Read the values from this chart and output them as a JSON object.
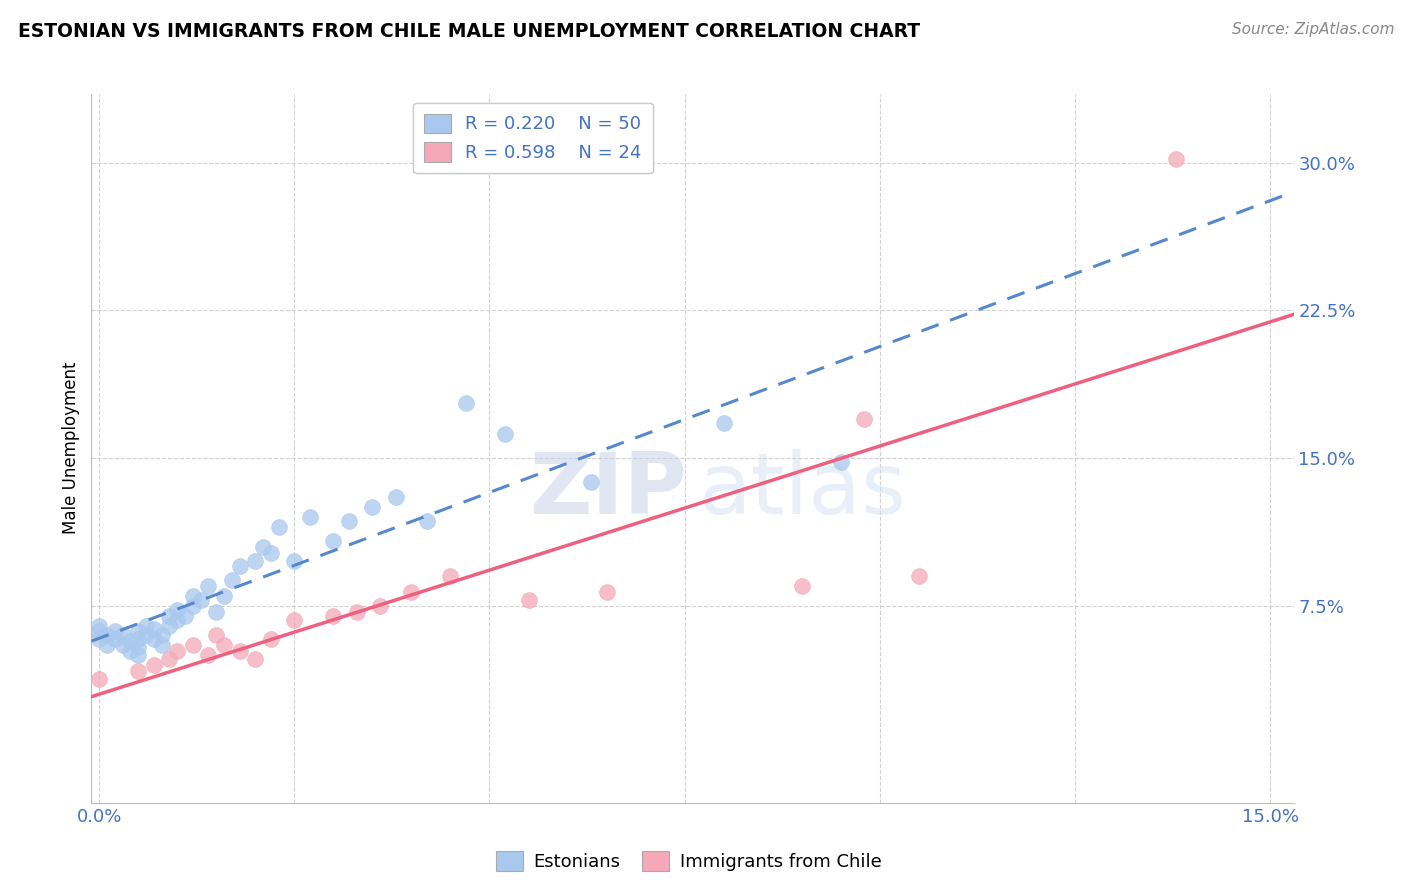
{
  "title": "ESTONIAN VS IMMIGRANTS FROM CHILE MALE UNEMPLOYMENT CORRELATION CHART",
  "source": "Source: ZipAtlas.com",
  "ylabel": "Male Unemployment",
  "xlim": [
    -0.001,
    0.153
  ],
  "ylim": [
    -0.025,
    0.335
  ],
  "yticks": [
    0.075,
    0.15,
    0.225,
    0.3
  ],
  "ytick_labels": [
    "7.5%",
    "15.0%",
    "22.5%",
    "30.0%"
  ],
  "xticks": [
    0.0,
    0.025,
    0.05,
    0.075,
    0.1,
    0.125,
    0.15
  ],
  "xtick_labels": [
    "0.0%",
    "",
    "",
    "",
    "",
    "",
    "15.0%"
  ],
  "legend_r1": "R = 0.220",
  "legend_n1": "N = 50",
  "legend_r2": "R = 0.598",
  "legend_n2": "N = 24",
  "blue_color": "#A8C8EE",
  "pink_color": "#F4A8B8",
  "blue_line_color": "#5588CC",
  "pink_line_color": "#EE6080",
  "blue_label": "Estonians",
  "pink_label": "Immigrants from Chile",
  "estonians_x": [
    0.0,
    0.0,
    0.0,
    0.001,
    0.001,
    0.002,
    0.002,
    0.003,
    0.003,
    0.004,
    0.004,
    0.005,
    0.005,
    0.005,
    0.005,
    0.006,
    0.006,
    0.007,
    0.007,
    0.008,
    0.008,
    0.009,
    0.009,
    0.01,
    0.01,
    0.011,
    0.012,
    0.012,
    0.013,
    0.014,
    0.015,
    0.016,
    0.017,
    0.018,
    0.02,
    0.021,
    0.022,
    0.023,
    0.025,
    0.027,
    0.03,
    0.032,
    0.035,
    0.038,
    0.042,
    0.047,
    0.052,
    0.063,
    0.08,
    0.095
  ],
  "estonians_y": [
    0.058,
    0.062,
    0.065,
    0.06,
    0.055,
    0.058,
    0.062,
    0.055,
    0.06,
    0.052,
    0.057,
    0.05,
    0.054,
    0.058,
    0.062,
    0.06,
    0.065,
    0.058,
    0.063,
    0.055,
    0.06,
    0.065,
    0.07,
    0.068,
    0.073,
    0.07,
    0.075,
    0.08,
    0.078,
    0.085,
    0.072,
    0.08,
    0.088,
    0.095,
    0.098,
    0.105,
    0.102,
    0.115,
    0.098,
    0.12,
    0.108,
    0.118,
    0.125,
    0.13,
    0.118,
    0.178,
    0.162,
    0.138,
    0.168,
    0.148
  ],
  "chile_x": [
    0.0,
    0.005,
    0.007,
    0.009,
    0.01,
    0.012,
    0.014,
    0.015,
    0.016,
    0.018,
    0.02,
    0.022,
    0.025,
    0.03,
    0.033,
    0.036,
    0.04,
    0.045,
    0.055,
    0.065,
    0.09,
    0.098,
    0.105,
    0.138
  ],
  "chile_y": [
    0.038,
    0.042,
    0.045,
    0.048,
    0.052,
    0.055,
    0.05,
    0.06,
    0.055,
    0.052,
    0.048,
    0.058,
    0.068,
    0.07,
    0.072,
    0.075,
    0.082,
    0.09,
    0.078,
    0.082,
    0.085,
    0.17,
    0.09,
    0.302
  ]
}
